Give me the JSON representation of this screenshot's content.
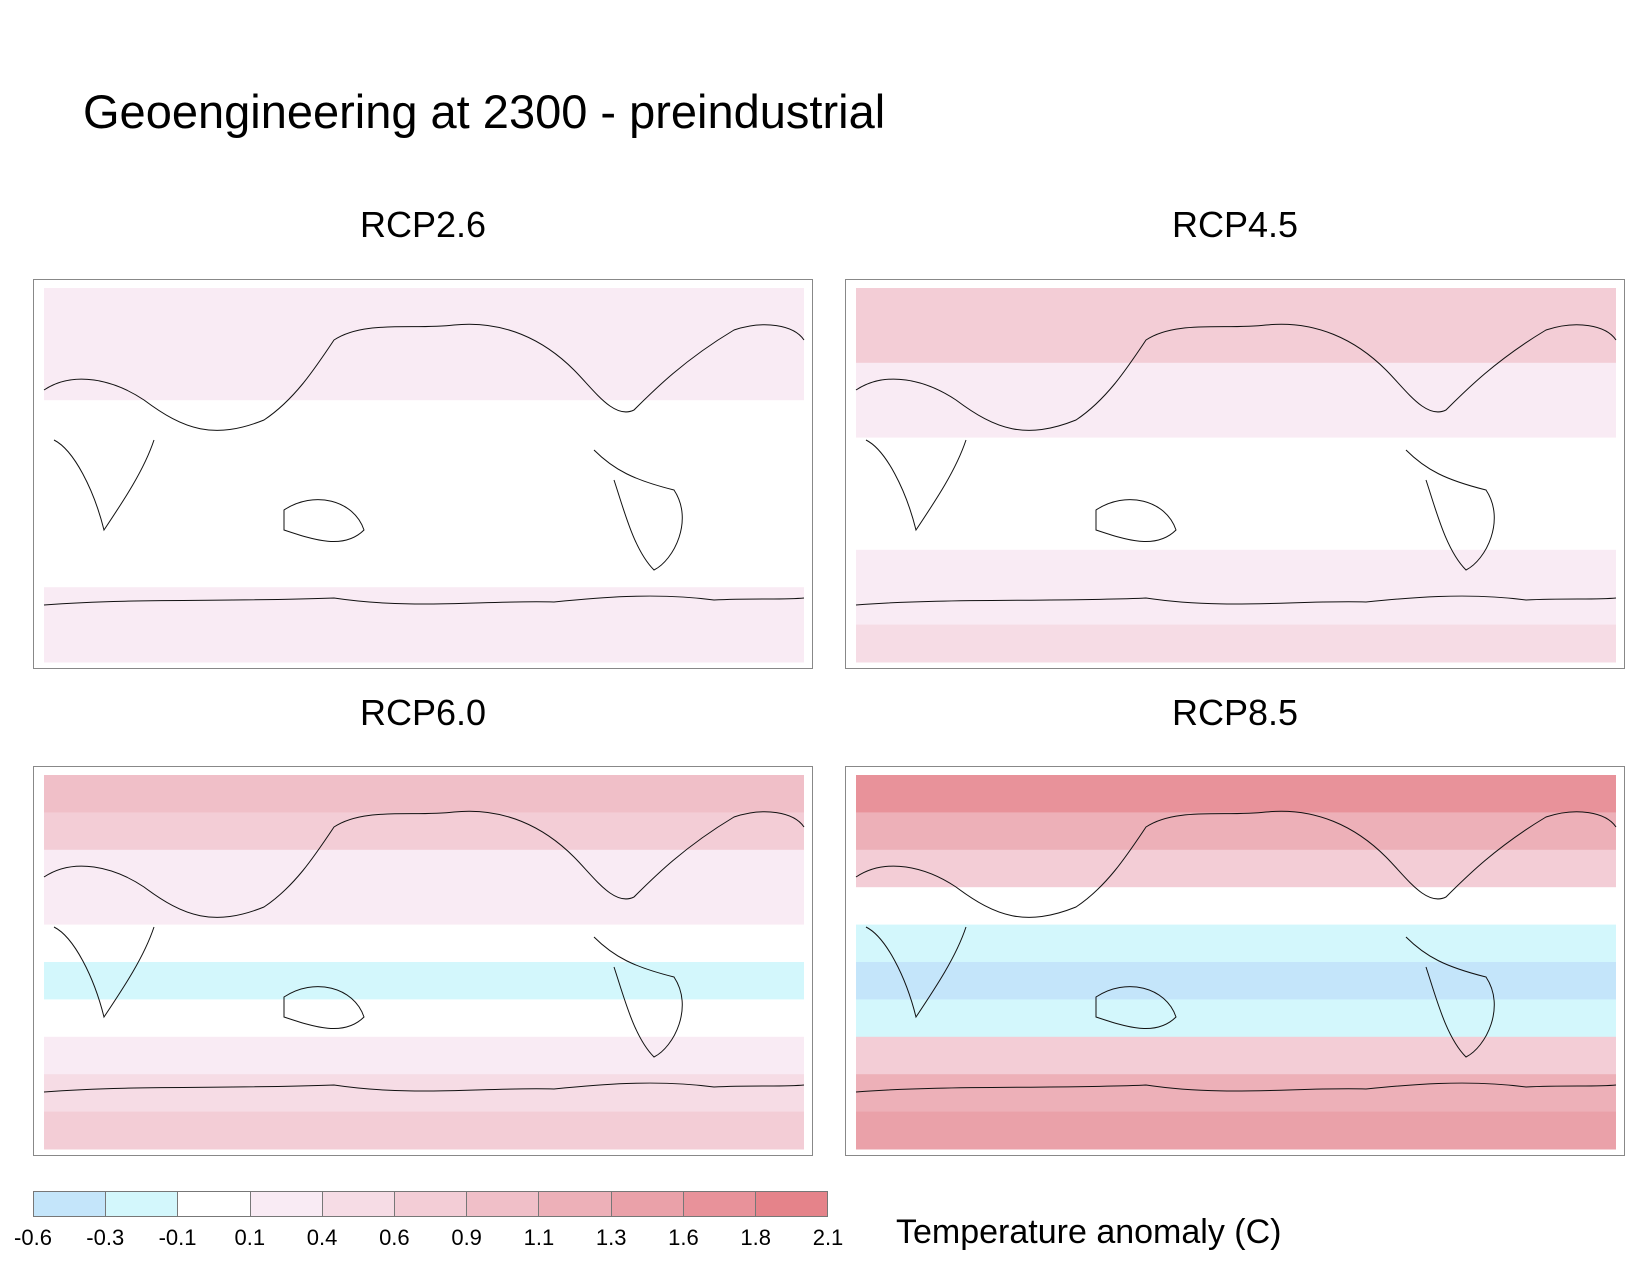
{
  "title": "Geoengineering at 2300 - preindustrial",
  "chart_data": {
    "type": "heatmap",
    "title": "Geoengineering at 2300 - preindustrial",
    "colorbar": {
      "label": "Temperature anomaly (C)",
      "ticks": [
        "-0.6",
        "-0.3",
        "-0.1",
        "0.1",
        "0.4",
        "0.6",
        "0.9",
        "1.1",
        "1.3",
        "1.6",
        "1.8",
        "2.1"
      ],
      "colors": [
        "#c4e5fa",
        "#d3f7fc",
        "#ffffff",
        "#f9ebf4",
        "#f6dce5",
        "#f3cdd6",
        "#f0bfc8",
        "#edb0b8",
        "#eaa1a9",
        "#e8929a",
        "#e5838a"
      ]
    },
    "panels": [
      {
        "name": "RCP2.6",
        "zonal_anomaly_north_to_south": [
          0.3,
          0.2,
          0.15,
          0.0,
          0.0,
          0.0,
          0.0,
          0.0,
          0.15,
          0.2
        ]
      },
      {
        "name": "RCP4.5",
        "zonal_anomaly_north_to_south": [
          0.7,
          0.6,
          0.3,
          0.15,
          0.0,
          0.0,
          0.0,
          0.2,
          0.3,
          0.45
        ]
      },
      {
        "name": "RCP6.0",
        "zonal_anomaly_north_to_south": [
          0.9,
          0.7,
          0.3,
          0.15,
          0.0,
          -0.15,
          0.0,
          0.2,
          0.4,
          0.7
        ]
      },
      {
        "name": "RCP8.5",
        "zonal_anomaly_north_to_south": [
          1.6,
          1.2,
          0.7,
          0.0,
          -0.2,
          -0.4,
          -0.2,
          0.7,
          1.1,
          1.4
        ]
      }
    ]
  }
}
